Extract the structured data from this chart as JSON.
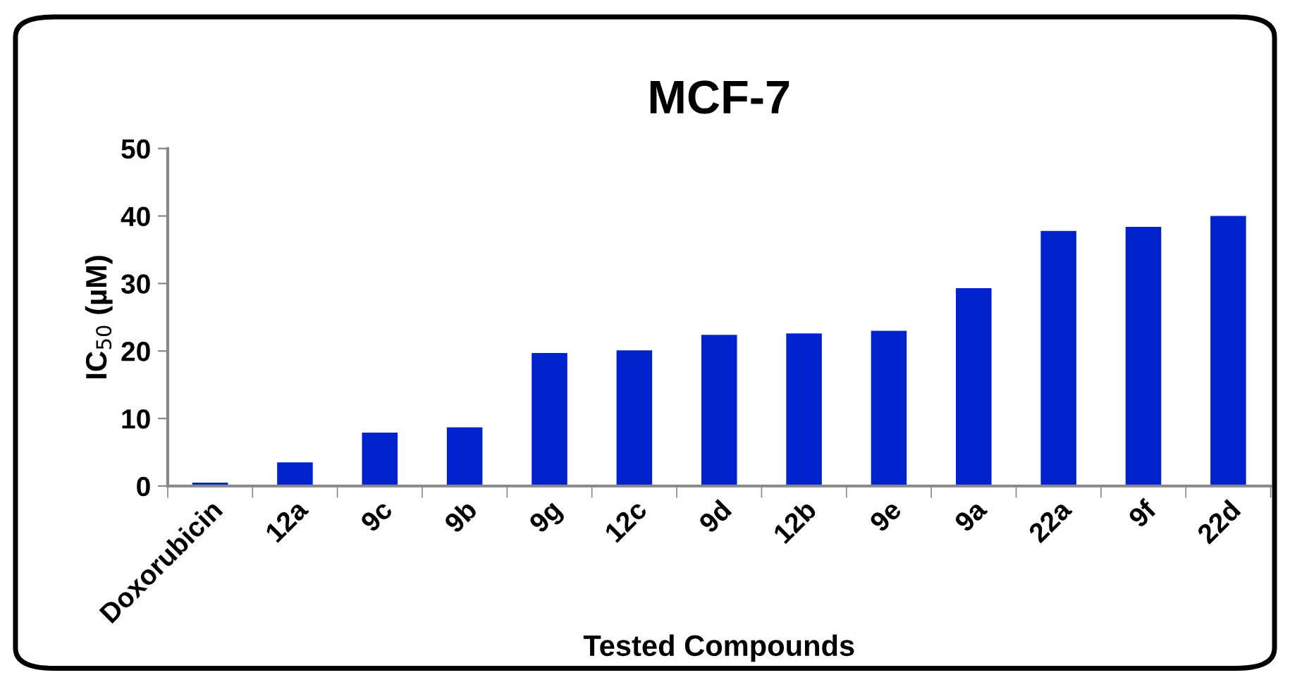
{
  "chart_data": {
    "type": "bar",
    "title": "MCF-7",
    "xlabel": "Tested Compounds",
    "ylabel": "IC$_{50}$ (µM)",
    "categories": [
      "Doxorubicin",
      "12a",
      "9c",
      "9b",
      "9g",
      "12c",
      "9d",
      "12b",
      "9e",
      "9a",
      "22a",
      "9f",
      "22d"
    ],
    "values": [
      0.5,
      3.5,
      7.9,
      8.7,
      19.7,
      20.1,
      22.4,
      22.6,
      23.0,
      29.3,
      37.8,
      38.4,
      40.0
    ],
    "color": "#0022cc",
    "ylim": [
      0,
      50
    ],
    "yticks": [
      0,
      10,
      20,
      30,
      40,
      50
    ],
    "grid": false
  }
}
